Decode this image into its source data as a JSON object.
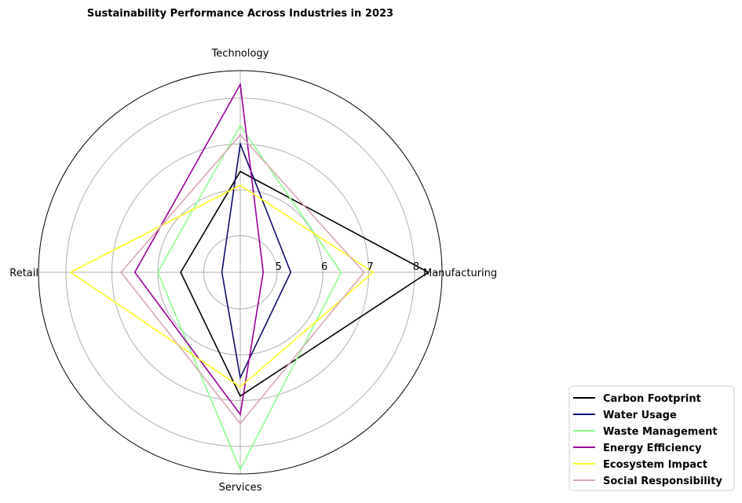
{
  "chart_data": {
    "type": "radar",
    "title": "Sustainability Performance Across Industries in 2023",
    "categories": [
      "Manufacturing",
      "Technology",
      "Retail",
      "Services"
    ],
    "r_ticks": [
      5,
      6,
      7,
      8
    ],
    "r_range": [
      4.2,
      8.6
    ],
    "grid": true,
    "legend_position": "bottom-right",
    "series": [
      {
        "name": "Carbon Footprint",
        "values": [
          8.3,
          6.4,
          5.5,
          6.9
        ],
        "color": "#000000"
      },
      {
        "name": "Water Usage",
        "values": [
          5.3,
          7.0,
          4.6,
          6.5
        ],
        "color": "#0d0d6b"
      },
      {
        "name": "Waste Management",
        "values": [
          6.4,
          7.4,
          6.0,
          8.5
        ],
        "color": "#8cff8c"
      },
      {
        "name": "Energy Efficiency",
        "values": [
          4.7,
          8.3,
          6.5,
          7.3
        ],
        "color": "#990099"
      },
      {
        "name": "Ecosystem Impact",
        "values": [
          7.1,
          6.1,
          7.9,
          6.7
        ],
        "color": "#ffff22"
      },
      {
        "name": "Social Responsibility",
        "values": [
          6.9,
          7.2,
          6.8,
          7.5
        ],
        "color": "#d8a8b4"
      }
    ]
  }
}
